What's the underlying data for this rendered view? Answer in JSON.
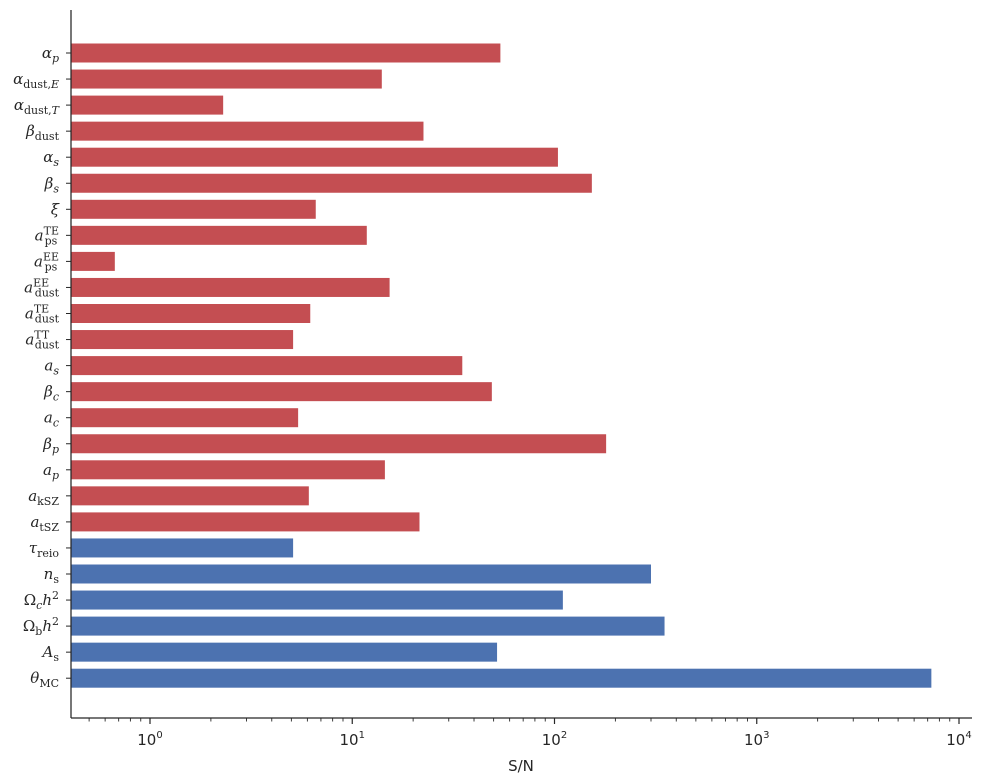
{
  "chart_data": {
    "type": "bar",
    "orientation": "horizontal",
    "x_scale": "log",
    "xlabel": "S/N",
    "ylabel": "",
    "xlim": [
      0.4,
      12000
    ],
    "x_ticks": [
      {
        "value": 1,
        "base": "10",
        "exp": "0"
      },
      {
        "value": 10,
        "base": "10",
        "exp": "1"
      },
      {
        "value": 100,
        "base": "10",
        "exp": "2"
      },
      {
        "value": 1000,
        "base": "10",
        "exp": "3"
      },
      {
        "value": 10000,
        "base": "10",
        "exp": "4"
      }
    ],
    "colors": {
      "foreground": "#c44e52",
      "cosmological": "#4c72b0"
    },
    "grid": false,
    "bars": [
      {
        "key": "alpha_p",
        "label": [
          {
            "t": "α"
          },
          {
            "t": "p",
            "s": "sub-it"
          }
        ],
        "value": 54,
        "group": "foreground"
      },
      {
        "key": "alpha_dust_E",
        "label": [
          {
            "t": "α"
          },
          {
            "t": "dust,",
            "s": "sub"
          },
          {
            "t": "E",
            "s": "sub-it"
          }
        ],
        "value": 14,
        "group": "foreground"
      },
      {
        "key": "alpha_dust_T",
        "label": [
          {
            "t": "α"
          },
          {
            "t": "dust,",
            "s": "sub"
          },
          {
            "t": "T",
            "s": "sub-it"
          }
        ],
        "value": 2.3,
        "group": "foreground"
      },
      {
        "key": "beta_dust",
        "label": [
          {
            "t": "β"
          },
          {
            "t": "dust",
            "s": "sub"
          }
        ],
        "value": 22.5,
        "group": "foreground"
      },
      {
        "key": "alpha_s",
        "label": [
          {
            "t": "α"
          },
          {
            "t": "s",
            "s": "sub-it"
          }
        ],
        "value": 104,
        "group": "foreground"
      },
      {
        "key": "beta_s",
        "label": [
          {
            "t": "β"
          },
          {
            "t": "s",
            "s": "sub-it"
          }
        ],
        "value": 153,
        "group": "foreground"
      },
      {
        "key": "xi",
        "label": [
          {
            "t": "ξ"
          }
        ],
        "value": 6.6,
        "group": "foreground"
      },
      {
        "key": "a_ps_TE",
        "label": [
          {
            "t": "a"
          },
          {
            "t": "TE",
            "s": "sup"
          },
          {
            "t": "ps",
            "s": "sub"
          }
        ],
        "value": 11.8,
        "group": "foreground"
      },
      {
        "key": "a_ps_EE",
        "label": [
          {
            "t": "a"
          },
          {
            "t": "EE",
            "s": "sup"
          },
          {
            "t": "ps",
            "s": "sub"
          }
        ],
        "value": 0.67,
        "group": "foreground"
      },
      {
        "key": "a_dust_EE",
        "label": [
          {
            "t": "a"
          },
          {
            "t": "EE",
            "s": "sup"
          },
          {
            "t": "dust",
            "s": "sub"
          }
        ],
        "value": 15.3,
        "group": "foreground"
      },
      {
        "key": "a_dust_TE",
        "label": [
          {
            "t": "a"
          },
          {
            "t": "TE",
            "s": "sup"
          },
          {
            "t": "dust",
            "s": "sub"
          }
        ],
        "value": 6.2,
        "group": "foreground"
      },
      {
        "key": "a_dust_TT",
        "label": [
          {
            "t": "a"
          },
          {
            "t": "TT",
            "s": "sup"
          },
          {
            "t": "dust",
            "s": "sub"
          }
        ],
        "value": 5.1,
        "group": "foreground"
      },
      {
        "key": "a_s",
        "label": [
          {
            "t": "a"
          },
          {
            "t": "s",
            "s": "sub-it"
          }
        ],
        "value": 35,
        "group": "foreground"
      },
      {
        "key": "beta_c",
        "label": [
          {
            "t": "β"
          },
          {
            "t": "c",
            "s": "sub-it"
          }
        ],
        "value": 49,
        "group": "foreground"
      },
      {
        "key": "a_c",
        "label": [
          {
            "t": "a"
          },
          {
            "t": "c",
            "s": "sub-it"
          }
        ],
        "value": 5.4,
        "group": "foreground"
      },
      {
        "key": "beta_p",
        "label": [
          {
            "t": "β"
          },
          {
            "t": "p",
            "s": "sub-it"
          }
        ],
        "value": 180,
        "group": "foreground"
      },
      {
        "key": "a_p",
        "label": [
          {
            "t": "a"
          },
          {
            "t": "p",
            "s": "sub-it"
          }
        ],
        "value": 14.5,
        "group": "foreground"
      },
      {
        "key": "a_kSZ",
        "label": [
          {
            "t": "a"
          },
          {
            "t": "kSZ",
            "s": "sub"
          }
        ],
        "value": 6.1,
        "group": "foreground"
      },
      {
        "key": "a_tSZ",
        "label": [
          {
            "t": "a"
          },
          {
            "t": "tSZ",
            "s": "sub"
          }
        ],
        "value": 21.5,
        "group": "foreground"
      },
      {
        "key": "tau_reio",
        "label": [
          {
            "t": "τ"
          },
          {
            "t": "reio",
            "s": "sub"
          }
        ],
        "value": 5.1,
        "group": "cosmological"
      },
      {
        "key": "n_s",
        "label": [
          {
            "t": "n"
          },
          {
            "t": "s",
            "s": "sub"
          }
        ],
        "value": 300,
        "group": "cosmological"
      },
      {
        "key": "Omega_c_h2",
        "label": [
          {
            "t": "Ω",
            "s": "rm"
          },
          {
            "t": "c",
            "s": "sub-it"
          },
          {
            "t": "h"
          },
          {
            "t": "2",
            "s": "sup"
          }
        ],
        "value": 110,
        "group": "cosmological"
      },
      {
        "key": "Omega_b_h2",
        "label": [
          {
            "t": "Ω",
            "s": "rm"
          },
          {
            "t": "b",
            "s": "sub"
          },
          {
            "t": "h"
          },
          {
            "t": "2",
            "s": "sup"
          }
        ],
        "value": 350,
        "group": "cosmological"
      },
      {
        "key": "A_s",
        "label": [
          {
            "t": "A"
          },
          {
            "t": "s",
            "s": "sub"
          }
        ],
        "value": 52,
        "group": "cosmological"
      },
      {
        "key": "theta_MC",
        "label": [
          {
            "t": "θ"
          },
          {
            "t": "MC",
            "s": "sub"
          }
        ],
        "value": 7300,
        "group": "cosmological"
      }
    ]
  }
}
